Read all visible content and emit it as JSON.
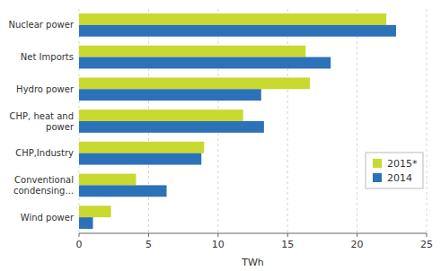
{
  "chart_data": {
    "type": "bar",
    "orientation": "horizontal",
    "categories": [
      "Wind power",
      "Conventional\ncondensing...",
      "CHP,Industry",
      "CHP, heat and\npower",
      "Hydro power",
      "Net Imports",
      "Nuclear power"
    ],
    "series": [
      {
        "name": "2015*",
        "color": "#c8d930",
        "values": [
          2.3,
          4.1,
          9.0,
          11.8,
          16.6,
          16.3,
          22.1
        ]
      },
      {
        "name": "2014",
        "color": "#2b72b8",
        "values": [
          1.0,
          6.3,
          8.8,
          13.3,
          13.1,
          18.1,
          22.8
        ]
      }
    ],
    "xlabel": "TWh",
    "xlim": [
      0,
      25
    ],
    "xticks": [
      0,
      5,
      10,
      15,
      20,
      25
    ],
    "grid": true,
    "legend": "right"
  }
}
